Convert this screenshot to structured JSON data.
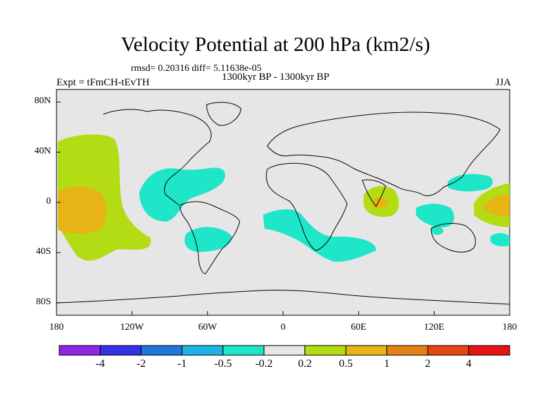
{
  "header": {
    "title": "Velocity Potential at 200 hPa (km2/s)",
    "stats": "rmsd= 0.20316 diff= 5.11638e-05",
    "experiment": "Expt = tFmCH-tEvTH",
    "period": "1300kyr BP - 1300kyr BP",
    "season": "JJA"
  },
  "map": {
    "projection": "cylindrical equidistant",
    "lon_range": [
      -180,
      180
    ],
    "lat_range": [
      -90,
      90
    ],
    "y_ticks": [
      {
        "label": "80N",
        "lat": 80
      },
      {
        "label": "40N",
        "lat": 40
      },
      {
        "label": "0",
        "lat": 0
      },
      {
        "label": "40S",
        "lat": -40
      },
      {
        "label": "80S",
        "lat": -80
      }
    ],
    "x_ticks": [
      {
        "label": "180",
        "lon": -180
      },
      {
        "label": "120W",
        "lon": -120
      },
      {
        "label": "60W",
        "lon": -60
      },
      {
        "label": "0",
        "lon": 0
      },
      {
        "label": "60E",
        "lon": 60
      },
      {
        "label": "120E",
        "lon": 120
      },
      {
        "label": "180",
        "lon": 180
      }
    ],
    "background_color": "#e6e6e6"
  },
  "colorbar": {
    "colors": [
      "#8c28e6",
      "#3232e6",
      "#1e78dc",
      "#1eb4e6",
      "#1ee6c8",
      "#e6e6e6",
      "#b4dc14",
      "#e6b414",
      "#e68214",
      "#e64614",
      "#e61414"
    ],
    "labels": [
      "-4",
      "-2",
      "-1",
      "-0.5",
      "-0.2",
      "0.2",
      "0.5",
      "1",
      "2",
      "4"
    ]
  },
  "regions": [
    {
      "name": "central-pacific-positive",
      "fill": "#b4dc14"
    },
    {
      "name": "central-pacific-core",
      "fill": "#e6b414"
    },
    {
      "name": "caribbean-negative",
      "fill": "#1ee6c8"
    },
    {
      "name": "south-america-negative",
      "fill": "#1ee6c8"
    },
    {
      "name": "south-atlantic-negative",
      "fill": "#1ee6c8"
    },
    {
      "name": "indian-ocean-positive",
      "fill": "#b4dc14"
    },
    {
      "name": "indian-ocean-core",
      "fill": "#e6b414"
    },
    {
      "name": "maritime-continent-negative",
      "fill": "#1ee6c8"
    },
    {
      "name": "west-pacific-negative",
      "fill": "#1ee6c8"
    },
    {
      "name": "west-pacific-positive",
      "fill": "#b4dc14"
    },
    {
      "name": "west-pacific-core",
      "fill": "#e6b414"
    },
    {
      "name": "southwest-pacific-negative",
      "fill": "#1ee6c8"
    }
  ]
}
